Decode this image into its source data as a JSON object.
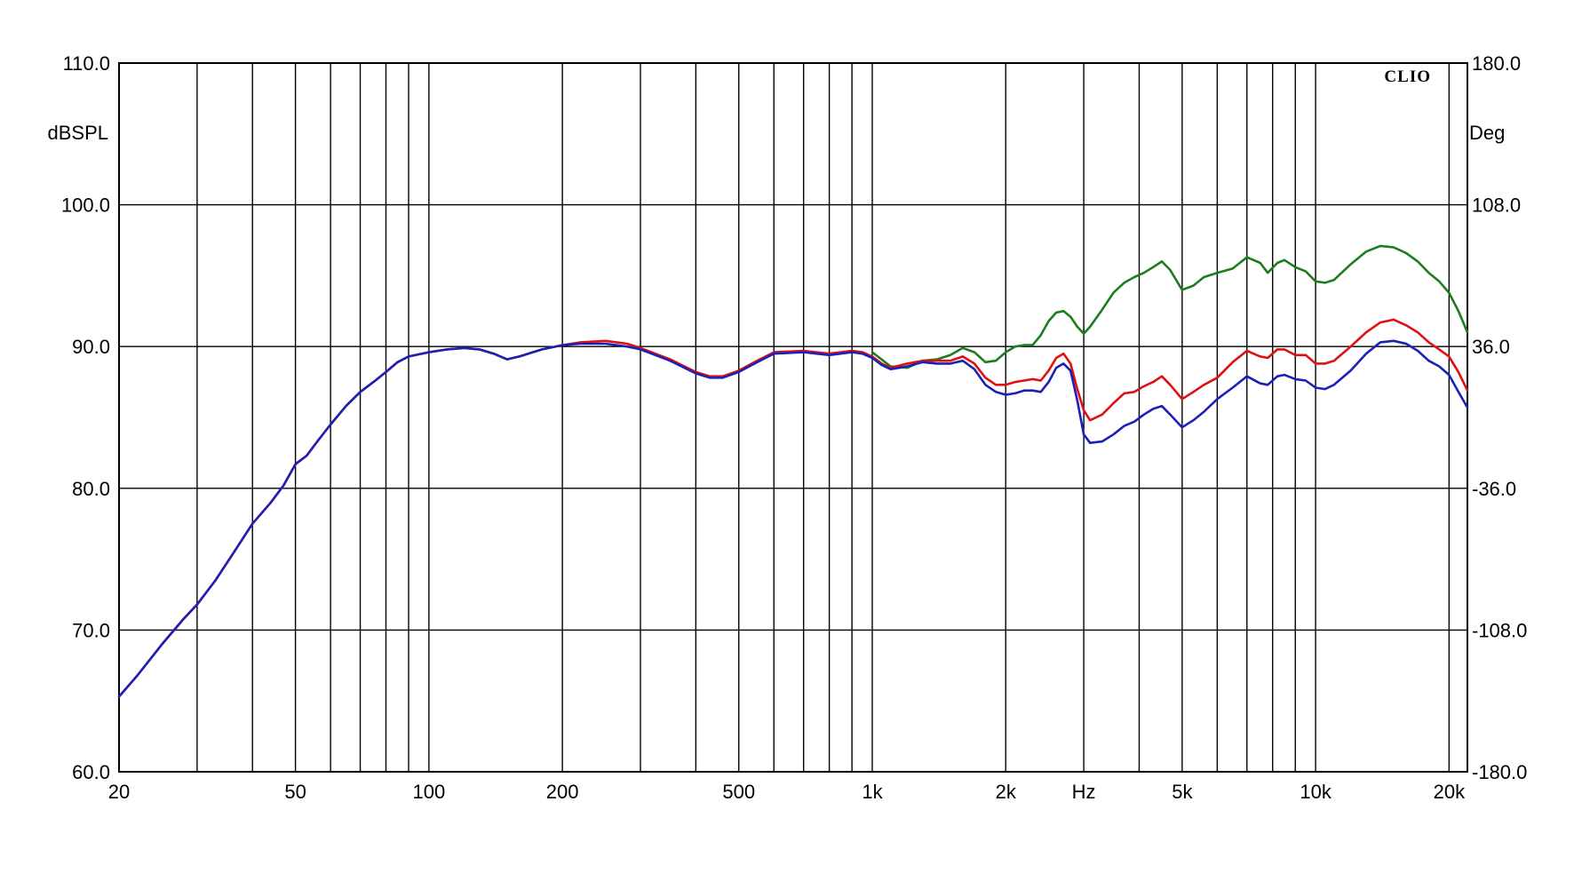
{
  "chart_data": {
    "type": "line",
    "brand": "CLIO",
    "x_scale": "log",
    "xlim": [
      20,
      22000
    ],
    "x_ticks": [
      {
        "value": 20,
        "label": "20"
      },
      {
        "value": 50,
        "label": "50"
      },
      {
        "value": 100,
        "label": "100"
      },
      {
        "value": 200,
        "label": "200"
      },
      {
        "value": 500,
        "label": "500"
      },
      {
        "value": 1000,
        "label": "1k"
      },
      {
        "value": 2000,
        "label": "2k"
      },
      {
        "value": 3000,
        "label": "Hz"
      },
      {
        "value": 5000,
        "label": "5k"
      },
      {
        "value": 10000,
        "label": "10k"
      },
      {
        "value": 20000,
        "label": "20k"
      }
    ],
    "x_grid": [
      20,
      30,
      40,
      50,
      60,
      70,
      80,
      90,
      100,
      200,
      300,
      400,
      500,
      600,
      700,
      800,
      900,
      1000,
      2000,
      3000,
      4000,
      5000,
      6000,
      7000,
      8000,
      9000,
      10000,
      20000
    ],
    "ylabel_left": "dBSPL",
    "ylim_left": [
      60,
      110
    ],
    "y_ticks_left": [
      "60.0",
      "70.0",
      "80.0",
      "90.0",
      "100.0",
      "110.0"
    ],
    "ylabel_right": "Deg",
    "ylim_right": [
      -180,
      180
    ],
    "y_ticks_right": [
      "-180.0",
      "-108.0",
      "-36.0",
      "36.0",
      "108.0",
      "180.0"
    ],
    "grid": true,
    "series": [
      {
        "color": "#1b7d1b",
        "points": [
          [
            1000,
            89.6
          ],
          [
            1100,
            88.6
          ],
          [
            1200,
            88.5
          ],
          [
            1300,
            89.0
          ],
          [
            1400,
            89.1
          ],
          [
            1500,
            89.4
          ],
          [
            1600,
            89.9
          ],
          [
            1700,
            89.6
          ],
          [
            1800,
            88.9
          ],
          [
            1900,
            89.0
          ],
          [
            2000,
            89.6
          ],
          [
            2100,
            90.0
          ],
          [
            2200,
            90.1
          ],
          [
            2300,
            90.1
          ],
          [
            2400,
            90.8
          ],
          [
            2500,
            91.8
          ],
          [
            2600,
            92.4
          ],
          [
            2700,
            92.5
          ],
          [
            2800,
            92.1
          ],
          [
            2900,
            91.4
          ],
          [
            3000,
            90.9
          ],
          [
            3100,
            91.4
          ],
          [
            3300,
            92.6
          ],
          [
            3500,
            93.8
          ],
          [
            3700,
            94.5
          ],
          [
            3900,
            94.9
          ],
          [
            4100,
            95.2
          ],
          [
            4300,
            95.6
          ],
          [
            4500,
            96.0
          ],
          [
            4700,
            95.4
          ],
          [
            5000,
            94.0
          ],
          [
            5300,
            94.3
          ],
          [
            5600,
            94.9
          ],
          [
            6000,
            95.2
          ],
          [
            6500,
            95.5
          ],
          [
            7000,
            96.3
          ],
          [
            7500,
            95.9
          ],
          [
            7800,
            95.2
          ],
          [
            8200,
            95.9
          ],
          [
            8500,
            96.1
          ],
          [
            9000,
            95.6
          ],
          [
            9500,
            95.3
          ],
          [
            10000,
            94.6
          ],
          [
            10500,
            94.5
          ],
          [
            11000,
            94.7
          ],
          [
            12000,
            95.8
          ],
          [
            13000,
            96.7
          ],
          [
            14000,
            97.1
          ],
          [
            15000,
            97.0
          ],
          [
            16000,
            96.6
          ],
          [
            17000,
            96.0
          ],
          [
            18000,
            95.2
          ],
          [
            19000,
            94.6
          ],
          [
            20000,
            93.8
          ],
          [
            21000,
            92.5
          ],
          [
            22000,
            91.0
          ]
        ]
      },
      {
        "color": "#e01010",
        "points": [
          [
            20,
            65.3
          ],
          [
            22,
            66.8
          ],
          [
            25,
            69.0
          ],
          [
            28,
            70.8
          ],
          [
            30,
            71.8
          ],
          [
            33,
            73.5
          ],
          [
            36,
            75.3
          ],
          [
            40,
            77.5
          ],
          [
            44,
            79.0
          ],
          [
            47,
            80.2
          ],
          [
            50,
            81.7
          ],
          [
            53,
            82.3
          ],
          [
            56,
            83.3
          ],
          [
            60,
            84.5
          ],
          [
            65,
            85.8
          ],
          [
            70,
            86.8
          ],
          [
            75,
            87.5
          ],
          [
            80,
            88.2
          ],
          [
            85,
            88.9
          ],
          [
            90,
            89.3
          ],
          [
            100,
            89.6
          ],
          [
            110,
            89.8
          ],
          [
            120,
            89.9
          ],
          [
            130,
            89.8
          ],
          [
            140,
            89.5
          ],
          [
            150,
            89.1
          ],
          [
            160,
            89.3
          ],
          [
            180,
            89.8
          ],
          [
            200,
            90.1
          ],
          [
            220,
            90.3
          ],
          [
            250,
            90.4
          ],
          [
            280,
            90.2
          ],
          [
            300,
            89.9
          ],
          [
            350,
            89.1
          ],
          [
            400,
            88.2
          ],
          [
            430,
            87.9
          ],
          [
            460,
            87.9
          ],
          [
            500,
            88.3
          ],
          [
            550,
            89.0
          ],
          [
            600,
            89.6
          ],
          [
            700,
            89.7
          ],
          [
            800,
            89.5
          ],
          [
            900,
            89.7
          ],
          [
            950,
            89.6
          ],
          [
            1000,
            89.3
          ],
          [
            1050,
            88.8
          ],
          [
            1100,
            88.5
          ],
          [
            1200,
            88.8
          ],
          [
            1300,
            89.0
          ],
          [
            1400,
            89.0
          ],
          [
            1500,
            89.0
          ],
          [
            1600,
            89.3
          ],
          [
            1700,
            88.8
          ],
          [
            1800,
            87.8
          ],
          [
            1900,
            87.3
          ],
          [
            2000,
            87.3
          ],
          [
            2100,
            87.5
          ],
          [
            2200,
            87.6
          ],
          [
            2300,
            87.7
          ],
          [
            2400,
            87.6
          ],
          [
            2500,
            88.3
          ],
          [
            2600,
            89.2
          ],
          [
            2700,
            89.5
          ],
          [
            2800,
            88.8
          ],
          [
            2900,
            87.0
          ],
          [
            3000,
            85.5
          ],
          [
            3100,
            84.8
          ],
          [
            3300,
            85.2
          ],
          [
            3500,
            86.0
          ],
          [
            3700,
            86.7
          ],
          [
            3900,
            86.8
          ],
          [
            4100,
            87.2
          ],
          [
            4300,
            87.5
          ],
          [
            4500,
            87.9
          ],
          [
            4700,
            87.3
          ],
          [
            5000,
            86.3
          ],
          [
            5300,
            86.8
          ],
          [
            5600,
            87.3
          ],
          [
            6000,
            87.8
          ],
          [
            6500,
            88.9
          ],
          [
            7000,
            89.7
          ],
          [
            7500,
            89.3
          ],
          [
            7800,
            89.2
          ],
          [
            8200,
            89.8
          ],
          [
            8500,
            89.8
          ],
          [
            9000,
            89.4
          ],
          [
            9500,
            89.4
          ],
          [
            10000,
            88.8
          ],
          [
            10500,
            88.8
          ],
          [
            11000,
            89.0
          ],
          [
            12000,
            90.0
          ],
          [
            13000,
            91.0
          ],
          [
            14000,
            91.7
          ],
          [
            15000,
            91.9
          ],
          [
            16000,
            91.5
          ],
          [
            17000,
            91.0
          ],
          [
            18000,
            90.3
          ],
          [
            19000,
            89.8
          ],
          [
            20000,
            89.3
          ],
          [
            21000,
            88.2
          ],
          [
            22000,
            86.9
          ]
        ]
      },
      {
        "color": "#1a20b8",
        "points": [
          [
            20,
            65.3
          ],
          [
            22,
            66.8
          ],
          [
            25,
            69.0
          ],
          [
            28,
            70.8
          ],
          [
            30,
            71.8
          ],
          [
            33,
            73.5
          ],
          [
            36,
            75.3
          ],
          [
            40,
            77.5
          ],
          [
            44,
            79.0
          ],
          [
            47,
            80.2
          ],
          [
            50,
            81.7
          ],
          [
            53,
            82.3
          ],
          [
            56,
            83.3
          ],
          [
            60,
            84.5
          ],
          [
            65,
            85.8
          ],
          [
            70,
            86.8
          ],
          [
            75,
            87.5
          ],
          [
            80,
            88.2
          ],
          [
            85,
            88.9
          ],
          [
            90,
            89.3
          ],
          [
            100,
            89.6
          ],
          [
            110,
            89.8
          ],
          [
            120,
            89.9
          ],
          [
            130,
            89.8
          ],
          [
            140,
            89.5
          ],
          [
            150,
            89.1
          ],
          [
            160,
            89.3
          ],
          [
            180,
            89.8
          ],
          [
            200,
            90.1
          ],
          [
            220,
            90.2
          ],
          [
            250,
            90.2
          ],
          [
            280,
            90.0
          ],
          [
            300,
            89.8
          ],
          [
            350,
            89.0
          ],
          [
            400,
            88.1
          ],
          [
            430,
            87.8
          ],
          [
            460,
            87.8
          ],
          [
            500,
            88.2
          ],
          [
            550,
            88.9
          ],
          [
            600,
            89.5
          ],
          [
            700,
            89.6
          ],
          [
            800,
            89.4
          ],
          [
            900,
            89.6
          ],
          [
            950,
            89.5
          ],
          [
            1000,
            89.2
          ],
          [
            1050,
            88.7
          ],
          [
            1100,
            88.4
          ],
          [
            1200,
            88.6
          ],
          [
            1300,
            88.9
          ],
          [
            1400,
            88.8
          ],
          [
            1500,
            88.8
          ],
          [
            1600,
            89.0
          ],
          [
            1700,
            88.4
          ],
          [
            1800,
            87.3
          ],
          [
            1900,
            86.8
          ],
          [
            2000,
            86.6
          ],
          [
            2100,
            86.7
          ],
          [
            2200,
            86.9
          ],
          [
            2300,
            86.9
          ],
          [
            2400,
            86.8
          ],
          [
            2500,
            87.5
          ],
          [
            2600,
            88.5
          ],
          [
            2700,
            88.8
          ],
          [
            2800,
            88.3
          ],
          [
            2900,
            86.2
          ],
          [
            3000,
            83.8
          ],
          [
            3100,
            83.2
          ],
          [
            3300,
            83.3
          ],
          [
            3500,
            83.8
          ],
          [
            3700,
            84.4
          ],
          [
            3900,
            84.7
          ],
          [
            4100,
            85.2
          ],
          [
            4300,
            85.6
          ],
          [
            4500,
            85.8
          ],
          [
            4700,
            85.2
          ],
          [
            5000,
            84.3
          ],
          [
            5300,
            84.8
          ],
          [
            5600,
            85.4
          ],
          [
            6000,
            86.3
          ],
          [
            6500,
            87.1
          ],
          [
            7000,
            87.9
          ],
          [
            7500,
            87.4
          ],
          [
            7800,
            87.3
          ],
          [
            8200,
            87.9
          ],
          [
            8500,
            88.0
          ],
          [
            9000,
            87.7
          ],
          [
            9500,
            87.6
          ],
          [
            10000,
            87.1
          ],
          [
            10500,
            87.0
          ],
          [
            11000,
            87.3
          ],
          [
            12000,
            88.3
          ],
          [
            13000,
            89.5
          ],
          [
            14000,
            90.3
          ],
          [
            15000,
            90.4
          ],
          [
            16000,
            90.2
          ],
          [
            17000,
            89.7
          ],
          [
            18000,
            89.0
          ],
          [
            19000,
            88.6
          ],
          [
            20000,
            88.0
          ],
          [
            21000,
            86.8
          ],
          [
            22000,
            85.7
          ]
        ]
      }
    ]
  }
}
